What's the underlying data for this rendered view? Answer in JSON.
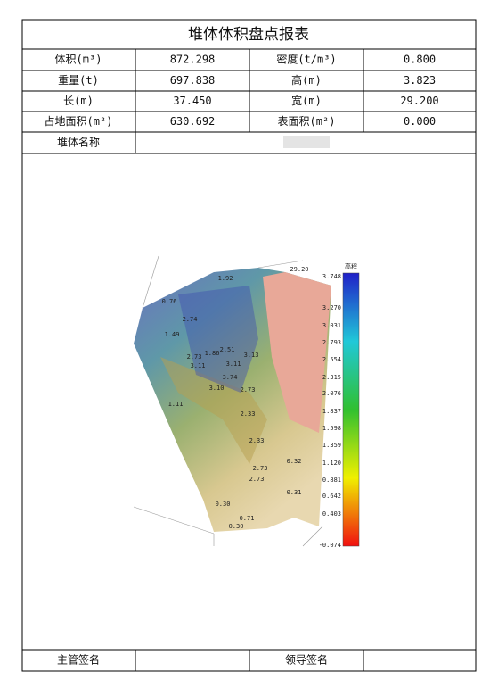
{
  "header": {
    "title": "堆体体积盘点报表"
  },
  "table": {
    "rows": [
      [
        "体积(m³)",
        "872.298",
        "密度(t/m³)",
        "0.800"
      ],
      [
        "重量(t)",
        "697.838",
        "高(m)",
        "3.823"
      ],
      [
        "长(m)",
        "37.450",
        "宽(m)",
        "29.200"
      ],
      [
        "占地面积(m²)",
        "630.692",
        "表面积(m²)",
        "0.000"
      ]
    ],
    "name_label": "堆体名称"
  },
  "image": {
    "colorbar_title": "高程",
    "axis_label": "29.20",
    "colorbar_labels": [
      "3.748",
      "3.270",
      "3.031",
      "2.793",
      "2.554",
      "2.315",
      "2.076",
      "1.837",
      "1.598",
      "1.359",
      "1.120",
      "0.881",
      "0.642",
      "0.403",
      "-0.074"
    ],
    "contour_labels": [
      "1.92",
      "0.76",
      "2.74",
      "1.49",
      "2.51",
      "1.86",
      "2.73",
      "3.11",
      "3.13",
      "3.11",
      "3.74",
      "3.10",
      "2.73",
      "1.11",
      "2.33",
      "2.33",
      "0.32",
      "2.73",
      "2.73",
      "0.31",
      "0.30",
      "0.71",
      "0.30"
    ]
  },
  "footer": {
    "labels": [
      "主管签名",
      "领导签名"
    ]
  }
}
